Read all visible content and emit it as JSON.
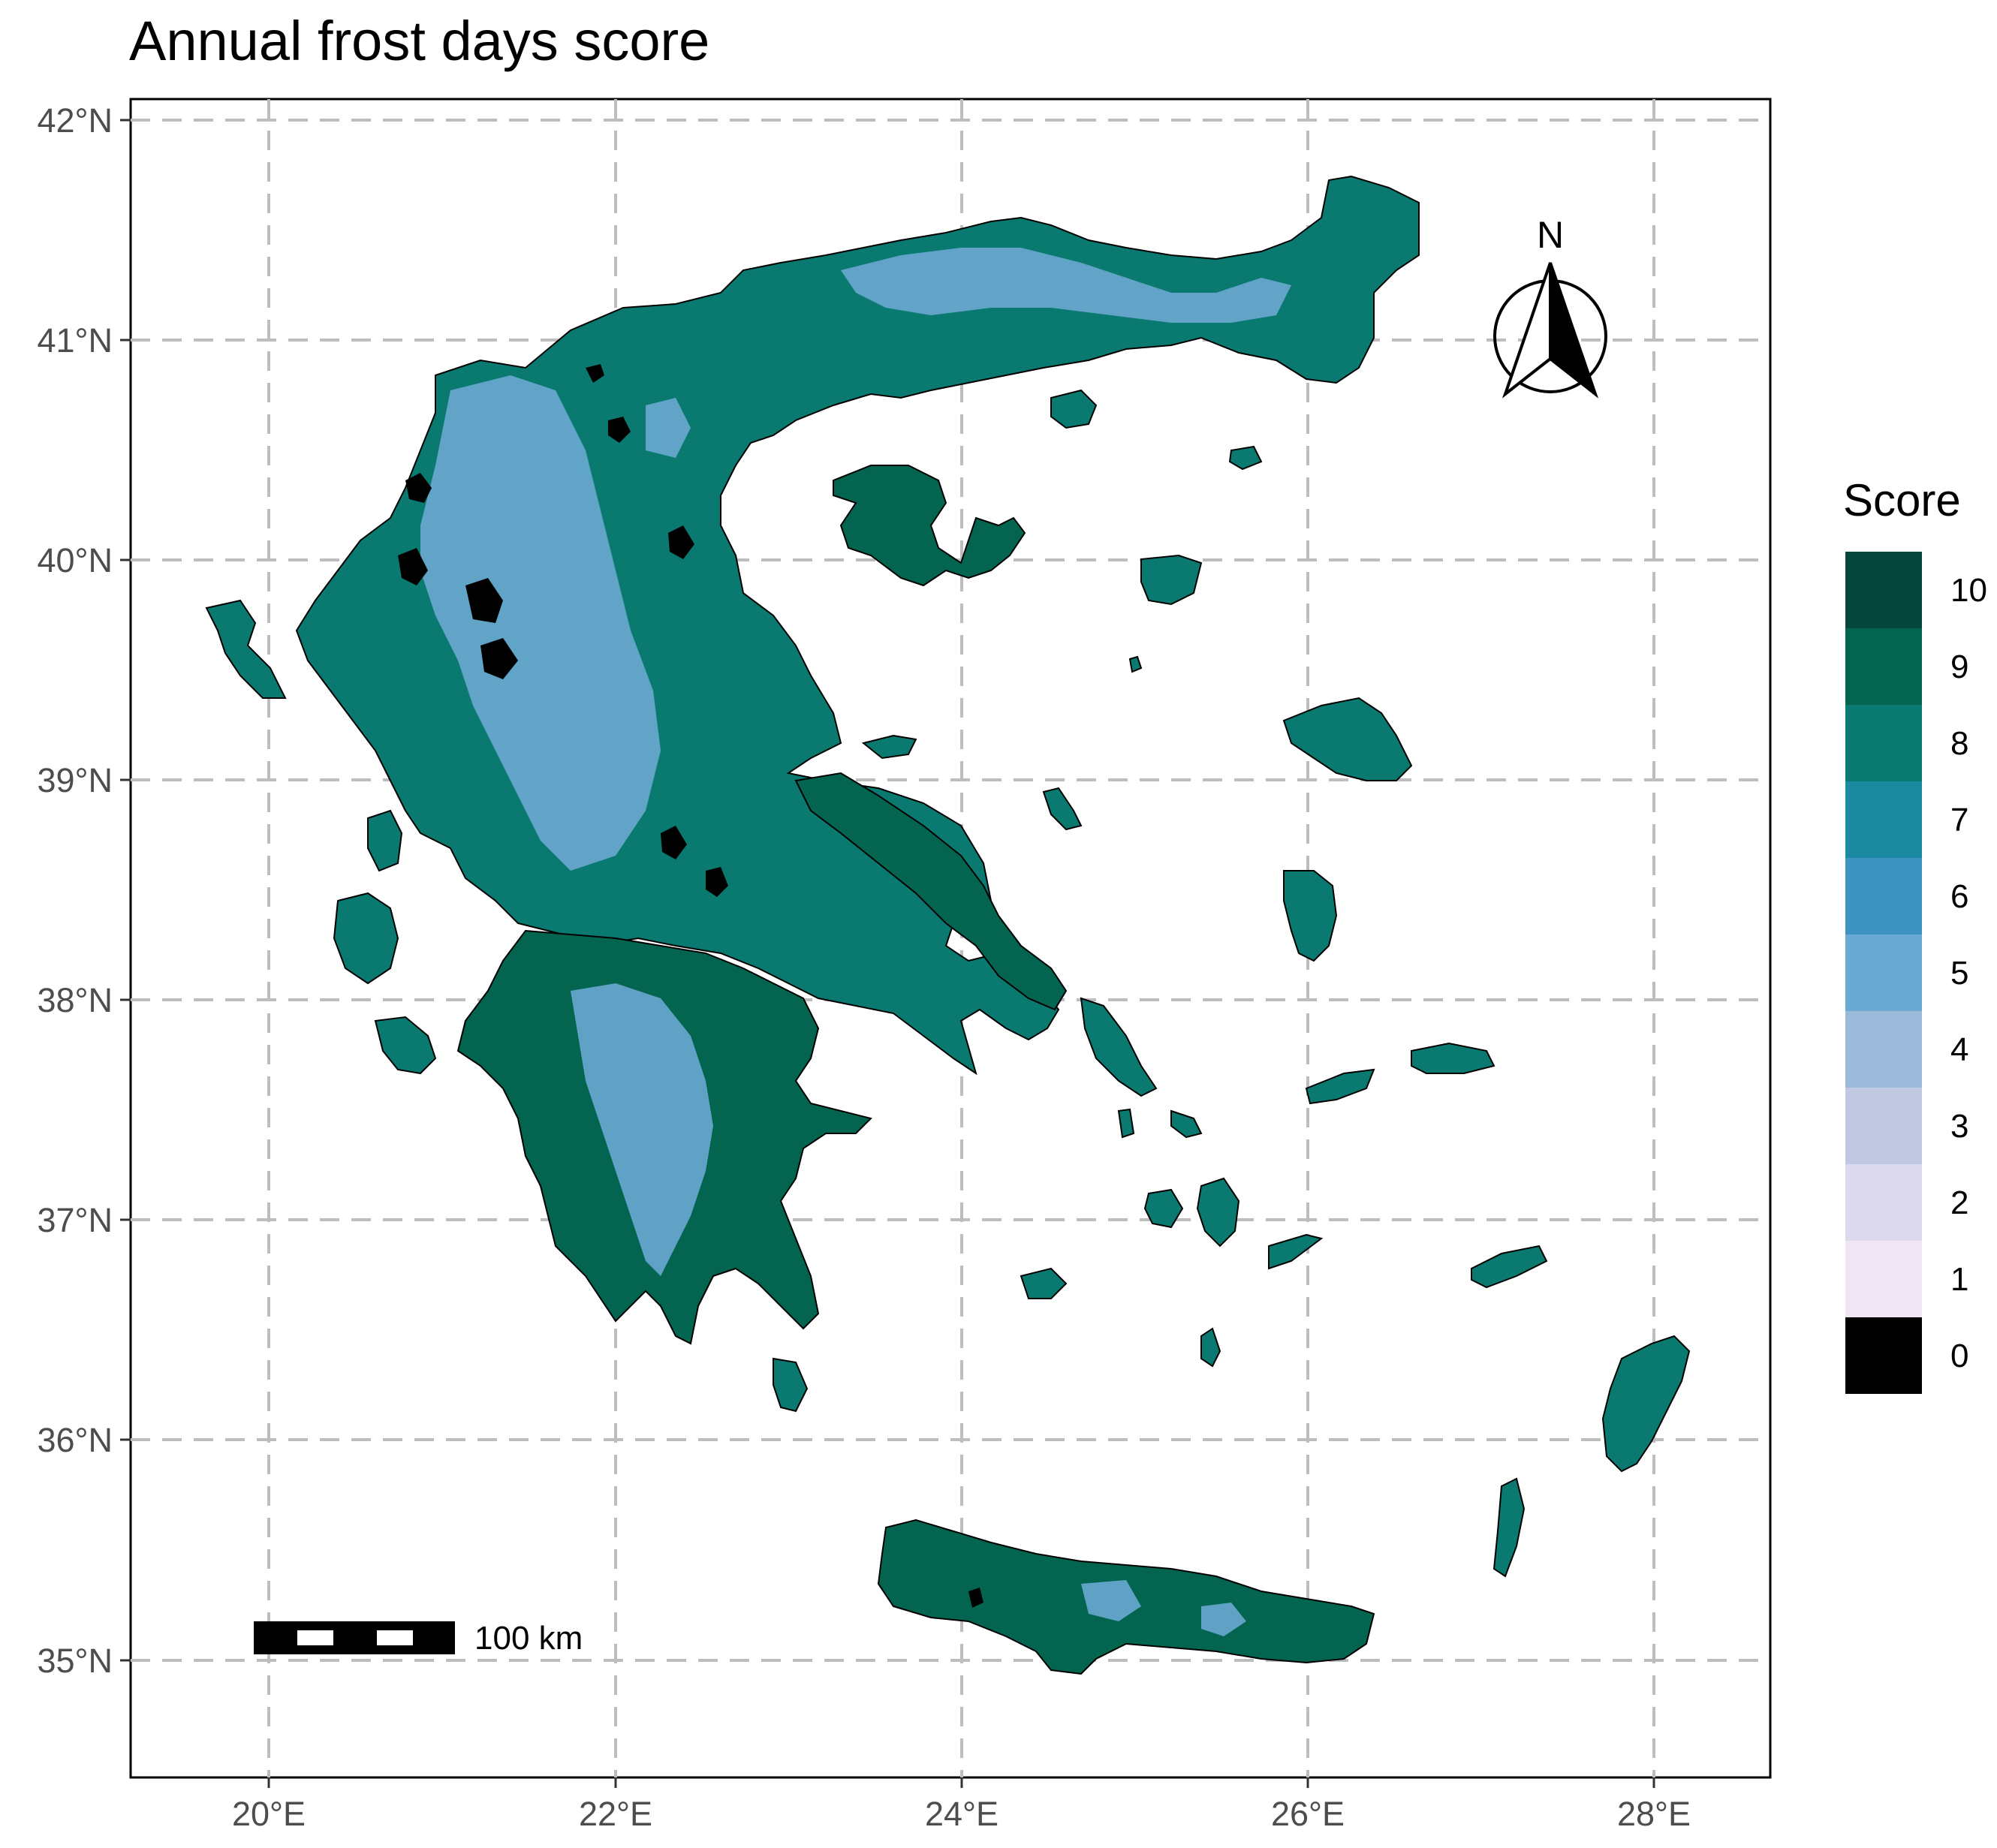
{
  "title": "Annual frost days score",
  "axes": {
    "lat_ticks": [
      "42°N",
      "41°N",
      "40°N",
      "39°N",
      "38°N",
      "37°N",
      "36°N",
      "35°N"
    ],
    "lon_ticks": [
      "20°E",
      "22°E",
      "24°E",
      "26°E",
      "28°E"
    ],
    "lat_values": [
      42,
      41,
      40,
      39,
      38,
      37,
      36,
      35
    ],
    "lon_values": [
      20,
      22,
      24,
      26,
      28
    ],
    "lat_range": [
      34.5,
      42.1
    ],
    "lon_range": [
      19.2,
      28.7
    ],
    "grid": "dashed"
  },
  "legend": {
    "title": "Score",
    "classes": [
      {
        "label": "10",
        "color": "#07463a"
      },
      {
        "label": "9",
        "color": "#03654f"
      },
      {
        "label": "8",
        "color": "#0a7a70"
      },
      {
        "label": "7",
        "color": "#1a8aa0"
      },
      {
        "label": "6",
        "color": "#3d93c2"
      },
      {
        "label": "5",
        "color": "#6aa9d1"
      },
      {
        "label": "4",
        "color": "#9bbad9"
      },
      {
        "label": "3",
        "color": "#c0c8e2"
      },
      {
        "label": "2",
        "color": "#dcd9ec"
      },
      {
        "label": "1",
        "color": "#eee6f3"
      },
      {
        "label": "0",
        "color": "#000000"
      }
    ]
  },
  "scale_bar": {
    "label": "100 km"
  },
  "north_arrow": {
    "label": "N",
    "icon": "north-arrow-icon"
  },
  "colors": {
    "land_dark": "#07463a",
    "land_mid": "#0a7a70",
    "land_light": "#6aa9d1",
    "frame": "#000000",
    "grid": "#bdbdbd"
  }
}
